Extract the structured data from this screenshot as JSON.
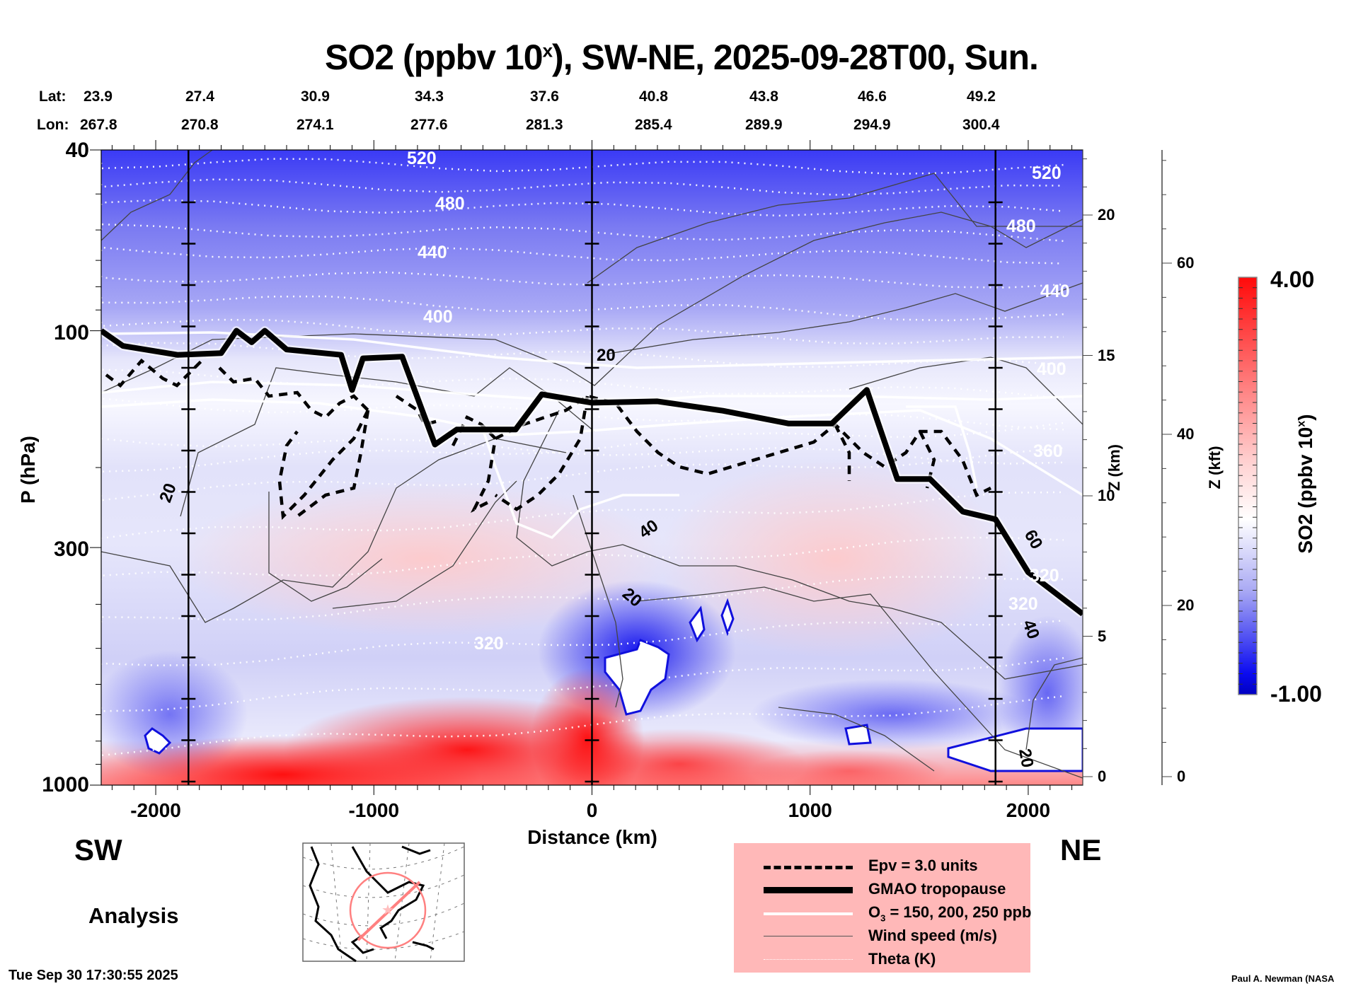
{
  "chart_data": {
    "type": "heatmap",
    "title": "SO2 (ppbv 10",
    "title_superscript": "x",
    "title_suffix": "), SW-NE, 2025-09-28T00, Sun.",
    "xlabel": "Distance (km)",
    "ylabel": "P (hPa)",
    "xlim": [
      -2250,
      2250
    ],
    "ylim": [
      1000,
      40
    ],
    "y_scale": "log",
    "xticks": [
      -2000,
      -1000,
      0,
      1000,
      2000
    ],
    "xtick_labels": [
      "-2000",
      "-1000",
      "0",
      "1000",
      "2000"
    ],
    "yticks": [
      40,
      100,
      300,
      1000
    ],
    "ytick_labels": [
      "40",
      "100",
      "300",
      "1000"
    ],
    "vertical_reference_lines_km": [
      -1850,
      0,
      1850
    ],
    "lat_lon_header": {
      "lat_label": "Lat:",
      "lon_label": "Lon:",
      "lat": [
        "23.9",
        "27.4",
        "30.9",
        "34.3",
        "37.6",
        "40.8",
        "43.8",
        "46.6",
        "49.2"
      ],
      "lon": [
        "267.8",
        "270.8",
        "274.1",
        "277.6",
        "281.3",
        "285.4",
        "289.9",
        "294.9",
        "300.4"
      ]
    },
    "z_km_axis": {
      "label": "Z (km)",
      "ticks": [
        0,
        5,
        10,
        15,
        20
      ],
      "tick_labels": [
        "0",
        "5",
        "10",
        "15",
        "20"
      ]
    },
    "z_kft_axis": {
      "label": "Z (kft)",
      "ticks": [
        0,
        20,
        40,
        60
      ],
      "tick_labels": [
        "0",
        "20",
        "40",
        "60"
      ]
    },
    "colorbar": {
      "label": "SO2 (ppbv 10",
      "label_superscript": "x",
      "label_suffix": ")",
      "min": -1.0,
      "max": 4.0,
      "min_label": "-1.00",
      "max_label": "4.00",
      "colors": {
        "low": "#0000cc",
        "mid": "#ffffff",
        "high": "#ff0000"
      }
    },
    "theta_contours_K": [
      {
        "label": "520",
        "p": 47
      },
      {
        "label": "480",
        "p": 57
      },
      {
        "label": "440",
        "p": 67
      },
      {
        "label": "400",
        "p": 85
      },
      {
        "label": "360",
        "p": 175
      },
      {
        "label": "320",
        "p": 500
      }
    ],
    "wind_speed_labels_ms": [
      "20",
      "20",
      "40",
      "20",
      "60",
      "40",
      "20"
    ],
    "tropopause_pressure_hPa": [
      {
        "x": -2250,
        "p": 100
      },
      {
        "x": -2150,
        "p": 108
      },
      {
        "x": -1900,
        "p": 113
      },
      {
        "x": -1700,
        "p": 112
      },
      {
        "x": -1630,
        "p": 100
      },
      {
        "x": -1560,
        "p": 106
      },
      {
        "x": -1500,
        "p": 100
      },
      {
        "x": -1400,
        "p": 110
      },
      {
        "x": -1150,
        "p": 113
      },
      {
        "x": -1100,
        "p": 135
      },
      {
        "x": -1050,
        "p": 115
      },
      {
        "x": -870,
        "p": 114
      },
      {
        "x": -720,
        "p": 178
      },
      {
        "x": -620,
        "p": 165
      },
      {
        "x": -350,
        "p": 165
      },
      {
        "x": -230,
        "p": 138
      },
      {
        "x": 0,
        "p": 144
      },
      {
        "x": 300,
        "p": 143
      },
      {
        "x": 600,
        "p": 150
      },
      {
        "x": 900,
        "p": 160
      },
      {
        "x": 1100,
        "p": 160
      },
      {
        "x": 1260,
        "p": 135
      },
      {
        "x": 1400,
        "p": 212
      },
      {
        "x": 1550,
        "p": 212
      },
      {
        "x": 1700,
        "p": 250
      },
      {
        "x": 1850,
        "p": 260
      },
      {
        "x": 2000,
        "p": 340
      },
      {
        "x": 2250,
        "p": 420
      }
    ]
  },
  "legend": {
    "items": [
      {
        "label": "Epv = 3.0 units",
        "style": "dashed"
      },
      {
        "label": "GMAO tropopause",
        "style": "thick"
      },
      {
        "label": "O",
        "sub": "3",
        "label_suffix": " = 150, 200, 250 ppb",
        "style": "white"
      },
      {
        "label": "Wind speed (m/s)",
        "style": "thin"
      },
      {
        "label": "Theta (K)",
        "style": "dotted"
      }
    ]
  },
  "labels": {
    "sw": "SW",
    "ne": "NE",
    "analysis": "Analysis",
    "timestamp": "Tue Sep 30 17:30:55 2025",
    "credit": "Paul A. Newman (NASA"
  },
  "inset_map": {
    "description": "North America locator map with SW-NE cross-section line",
    "track_color": "#ff8080"
  }
}
